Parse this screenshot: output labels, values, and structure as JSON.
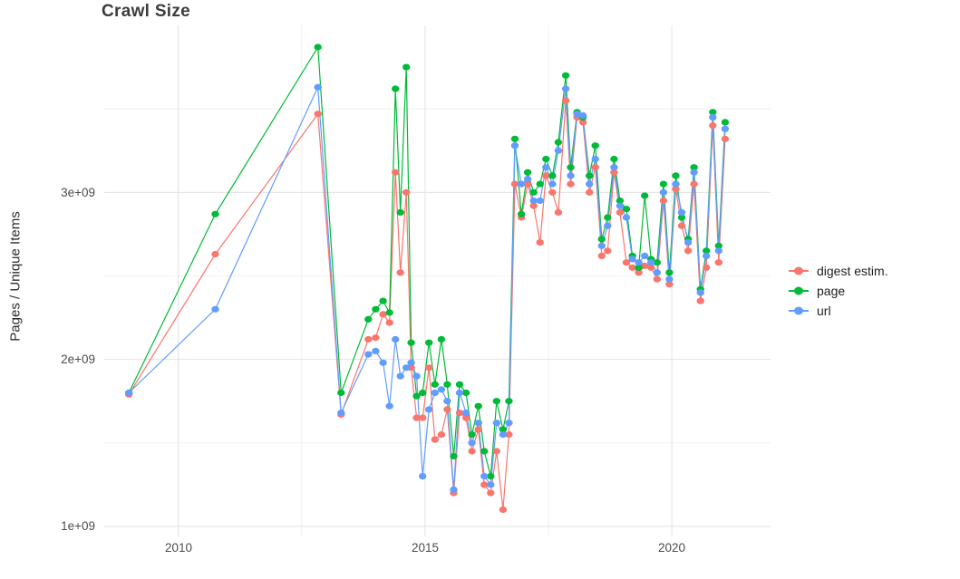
{
  "chart_data": {
    "type": "line",
    "title": "Crawl Size",
    "xlabel": "",
    "ylabel": "Pages / Unique Items",
    "grid": true,
    "legend_position": "right",
    "marker": "point",
    "point_and_line": true,
    "x_axis": {
      "range": [
        2008.5,
        2022.0
      ],
      "ticks": [
        2010,
        2015,
        2020
      ],
      "tick_labels": [
        "2010",
        "2015",
        "2020"
      ],
      "minor_ticks": [
        2012.5,
        2017.5
      ]
    },
    "y_axis": {
      "range": [
        940000000.0,
        4000000000.0
      ],
      "ticks": [
        1000000000.0,
        2000000000.0,
        3000000000.0
      ],
      "tick_labels": [
        "1e+09",
        "2e+09",
        "3e+09"
      ],
      "minor_ticks": [
        1500000000.0,
        2500000000.0,
        3500000000.0
      ]
    },
    "x": [
      2009.0,
      2010.75,
      2012.83,
      2013.3,
      2013.85,
      2014.0,
      2014.15,
      2014.28,
      2014.4,
      2014.5,
      2014.62,
      2014.72,
      2014.83,
      2014.95,
      2015.08,
      2015.2,
      2015.33,
      2015.45,
      2015.58,
      2015.7,
      2015.83,
      2015.95,
      2016.08,
      2016.2,
      2016.33,
      2016.45,
      2016.58,
      2016.7,
      2016.82,
      2016.95,
      2017.08,
      2017.2,
      2017.33,
      2017.45,
      2017.58,
      2017.7,
      2017.85,
      2017.95,
      2018.08,
      2018.2,
      2018.33,
      2018.45,
      2018.58,
      2018.7,
      2018.83,
      2018.95,
      2019.08,
      2019.2,
      2019.33,
      2019.45,
      2019.58,
      2019.7,
      2019.83,
      2019.95,
      2020.08,
      2020.2,
      2020.33,
      2020.45,
      2020.58,
      2020.7,
      2020.83,
      2020.95,
      2021.08
    ],
    "series": [
      {
        "name": "digest estim.",
        "color": "#F8766D",
        "values": [
          1790000000.0,
          2630000000.0,
          3470000000.0,
          1670000000.0,
          2120000000.0,
          2130000000.0,
          2270000000.0,
          2220000000.0,
          3120000000.0,
          2520000000.0,
          3000000000.0,
          1950000000.0,
          1650000000.0,
          1650000000.0,
          1950000000.0,
          1520000000.0,
          1550000000.0,
          1700000000.0,
          1200000000.0,
          1680000000.0,
          1650000000.0,
          1450000000.0,
          1580000000.0,
          1250000000.0,
          1200000000.0,
          1450000000.0,
          1100000000.0,
          1550000000.0,
          3050000000.0,
          2850000000.0,
          3050000000.0,
          2920000000.0,
          2700000000.0,
          3100000000.0,
          3000000000.0,
          2880000000.0,
          3550000000.0,
          3050000000.0,
          3450000000.0,
          3420000000.0,
          3000000000.0,
          3150000000.0,
          2620000000.0,
          2650000000.0,
          3120000000.0,
          2880000000.0,
          2580000000.0,
          2550000000.0,
          2520000000.0,
          2560000000.0,
          2550000000.0,
          2480000000.0,
          2950000000.0,
          2450000000.0,
          3020000000.0,
          2800000000.0,
          2650000000.0,
          3050000000.0,
          2350000000.0,
          2550000000.0,
          3400000000.0,
          2580000000.0,
          3320000000.0
        ]
      },
      {
        "name": "page",
        "color": "#00BA38",
        "values": [
          1800000000.0,
          2870000000.0,
          3870000000.0,
          1800000000.0,
          2240000000.0,
          2300000000.0,
          2350000000.0,
          2280000000.0,
          3620000000.0,
          2880000000.0,
          3750000000.0,
          2100000000.0,
          1780000000.0,
          1800000000.0,
          2100000000.0,
          1850000000.0,
          2120000000.0,
          1850000000.0,
          1420000000.0,
          1850000000.0,
          1800000000.0,
          1550000000.0,
          1720000000.0,
          1450000000.0,
          1300000000.0,
          1750000000.0,
          1580000000.0,
          1750000000.0,
          3320000000.0,
          2870000000.0,
          3120000000.0,
          3000000000.0,
          3050000000.0,
          3200000000.0,
          3100000000.0,
          3300000000.0,
          3700000000.0,
          3150000000.0,
          3480000000.0,
          3450000000.0,
          3100000000.0,
          3280000000.0,
          2720000000.0,
          2850000000.0,
          3200000000.0,
          2950000000.0,
          2900000000.0,
          2620000000.0,
          2550000000.0,
          2980000000.0,
          2600000000.0,
          2580000000.0,
          3050000000.0,
          2520000000.0,
          3100000000.0,
          2850000000.0,
          2720000000.0,
          3150000000.0,
          2420000000.0,
          2650000000.0,
          3480000000.0,
          2680000000.0,
          3420000000.0
        ]
      },
      {
        "name": "url",
        "color": "#619CFF",
        "values": [
          1800000000.0,
          2300000000.0,
          3630000000.0,
          1680000000.0,
          2030000000.0,
          2050000000.0,
          1980000000.0,
          1720000000.0,
          2120000000.0,
          1900000000.0,
          1950000000.0,
          1980000000.0,
          1900000000.0,
          1300000000.0,
          1700000000.0,
          1800000000.0,
          1820000000.0,
          1750000000.0,
          1220000000.0,
          1800000000.0,
          1680000000.0,
          1500000000.0,
          1620000000.0,
          1300000000.0,
          1250000000.0,
          1620000000.0,
          1550000000.0,
          1620000000.0,
          3280000000.0,
          3050000000.0,
          3080000000.0,
          2950000000.0,
          2950000000.0,
          3150000000.0,
          3050000000.0,
          3250000000.0,
          3620000000.0,
          3100000000.0,
          3470000000.0,
          3460000000.0,
          3050000000.0,
          3200000000.0,
          2680000000.0,
          2800000000.0,
          3150000000.0,
          2920000000.0,
          2850000000.0,
          2600000000.0,
          2580000000.0,
          2620000000.0,
          2580000000.0,
          2520000000.0,
          3000000000.0,
          2480000000.0,
          3050000000.0,
          2880000000.0,
          2700000000.0,
          3120000000.0,
          2400000000.0,
          2620000000.0,
          3450000000.0,
          2650000000.0,
          3380000000.0
        ]
      }
    ],
    "style": {
      "grid_major_color": "#e2e2e2",
      "grid_minor_color": "#f0f0f0",
      "background": "#ffffff"
    }
  }
}
